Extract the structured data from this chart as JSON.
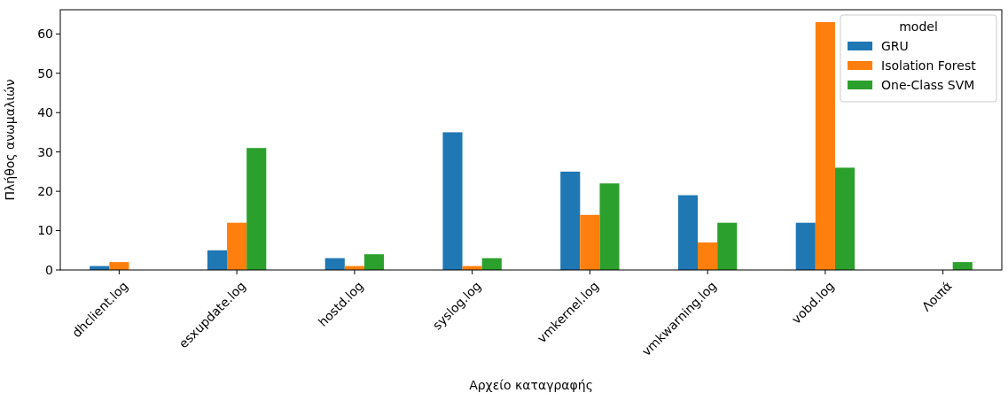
{
  "chart_data": {
    "type": "bar",
    "xlabel": "Αρχείο καταγραφής",
    "ylabel": "Πλήθος ανωμαλιών",
    "legend_title": "model",
    "legend": "top right",
    "grid": false,
    "categories": [
      "dhclient.log",
      "esxupdate.log",
      "hostd.log",
      "syslog.log",
      "vmkernel.log",
      "vmkwarning.log",
      "vobd.log",
      "Λοιπά"
    ],
    "ylim": [
      0,
      66.15
    ],
    "yticks": [
      0,
      10,
      20,
      30,
      40,
      50,
      60
    ],
    "series": [
      {
        "name": "GRU",
        "color": "#1f77b4",
        "values": [
          1,
          5,
          3,
          35,
          25,
          19,
          12,
          null
        ]
      },
      {
        "name": "Isolation Forest",
        "color": "#ff7f0e",
        "values": [
          2,
          12,
          1,
          1,
          14,
          7,
          63,
          null
        ]
      },
      {
        "name": "One-Class SVM",
        "color": "#2ca02c",
        "values": [
          null,
          31,
          4,
          3,
          22,
          12,
          26,
          2
        ]
      }
    ]
  }
}
